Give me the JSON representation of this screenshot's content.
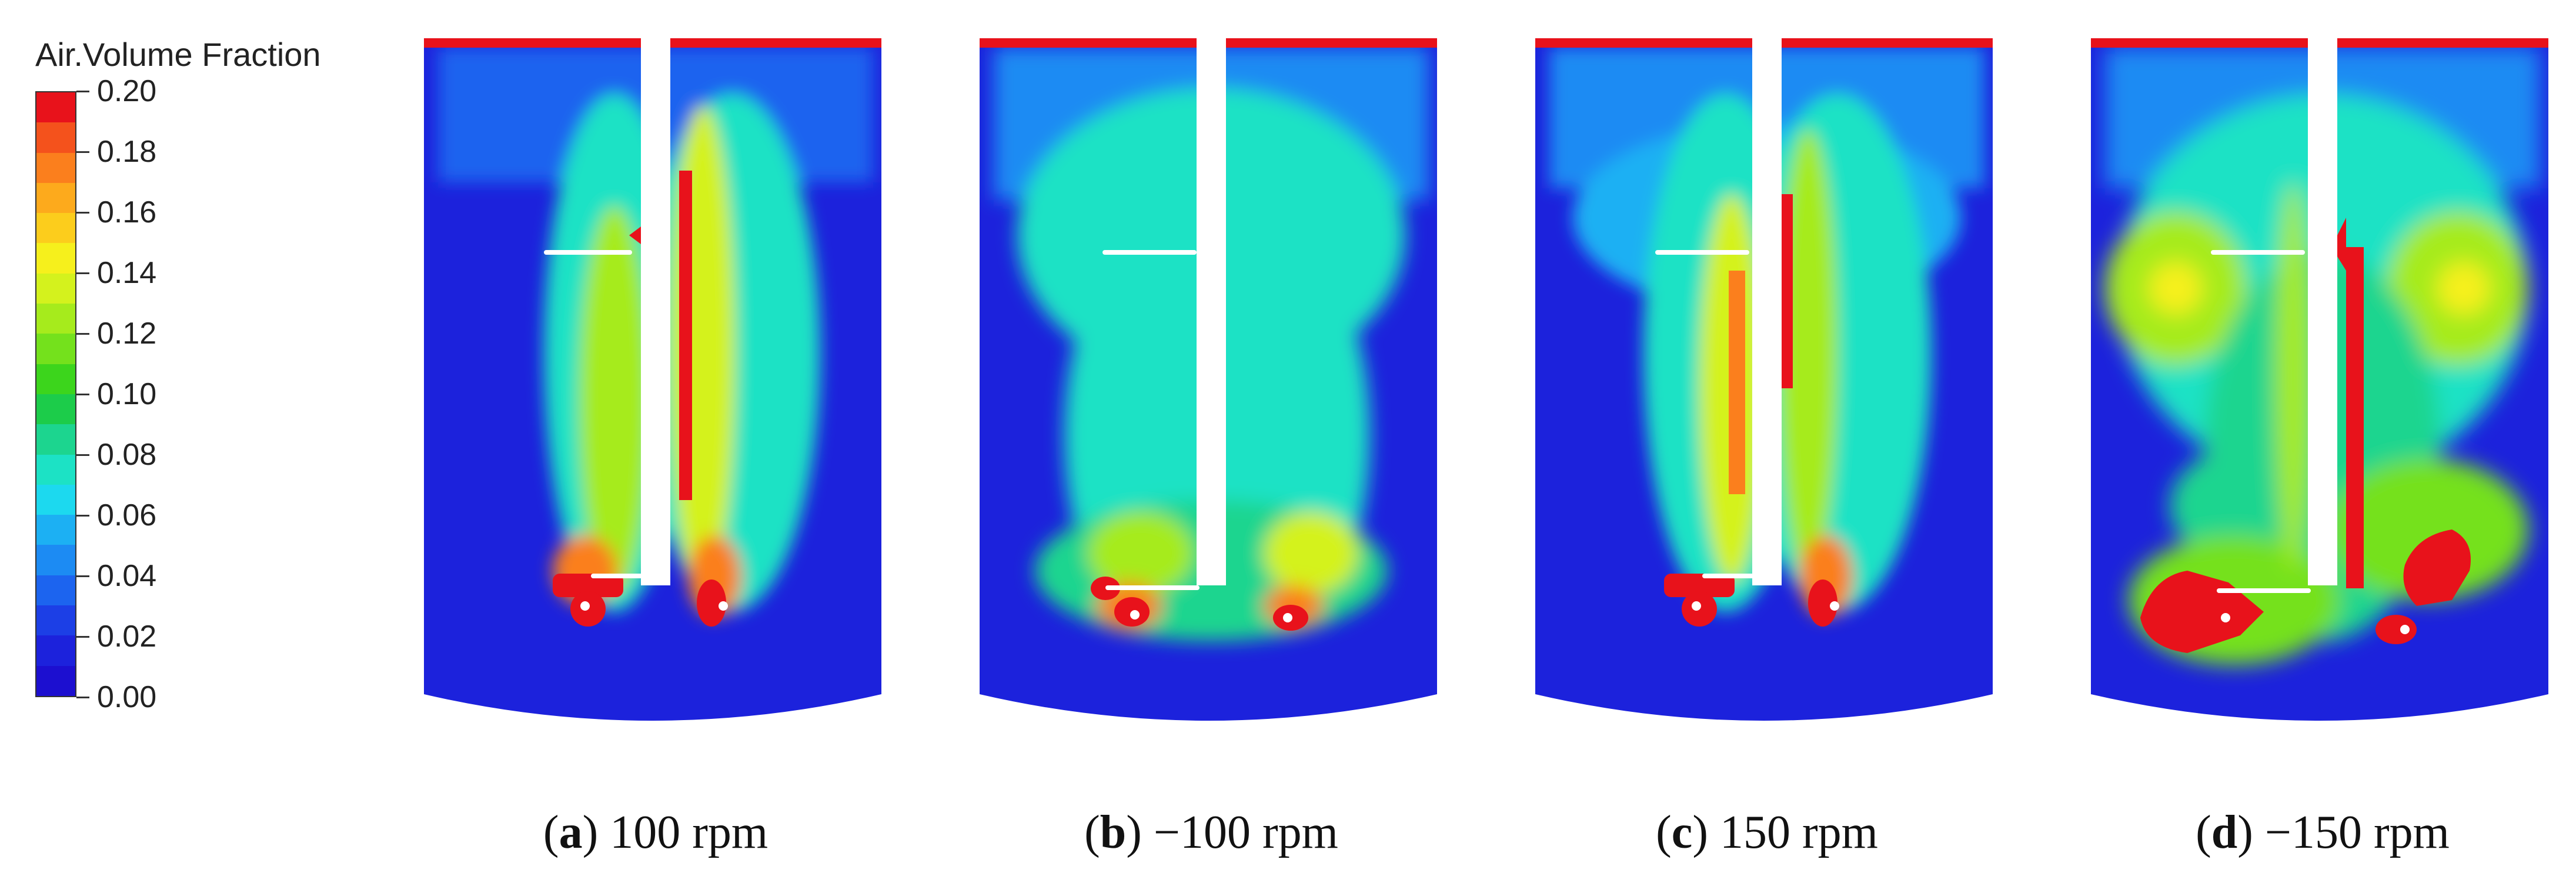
{
  "legend": {
    "title": "Air.Volume Fraction",
    "ticks": [
      "0.20",
      "0.18",
      "0.16",
      "0.14",
      "0.12",
      "0.10",
      "0.08",
      "0.06",
      "0.04",
      "0.02",
      "0.00"
    ],
    "colors": [
      "#e8121b",
      "#f4521c",
      "#fb7f1d",
      "#fdaa1c",
      "#fccd1c",
      "#f6f01c",
      "#d4f21d",
      "#a6eb1c",
      "#74e11c",
      "#3cd51c",
      "#1ccc4a",
      "#1cd58f",
      "#1ce2c5",
      "#1cd9ef",
      "#1cb0f3",
      "#1c8bf3",
      "#1c64ef",
      "#1c3fe6",
      "#1c22dc",
      "#1c0fd0"
    ]
  },
  "panels": [
    {
      "label": "a",
      "text": " 100 rpm"
    },
    {
      "label": "b",
      "text": " −100 rpm"
    },
    {
      "label": "c",
      "text": " 150 rpm"
    },
    {
      "label": "d",
      "text": " −150 rpm"
    }
  ]
}
